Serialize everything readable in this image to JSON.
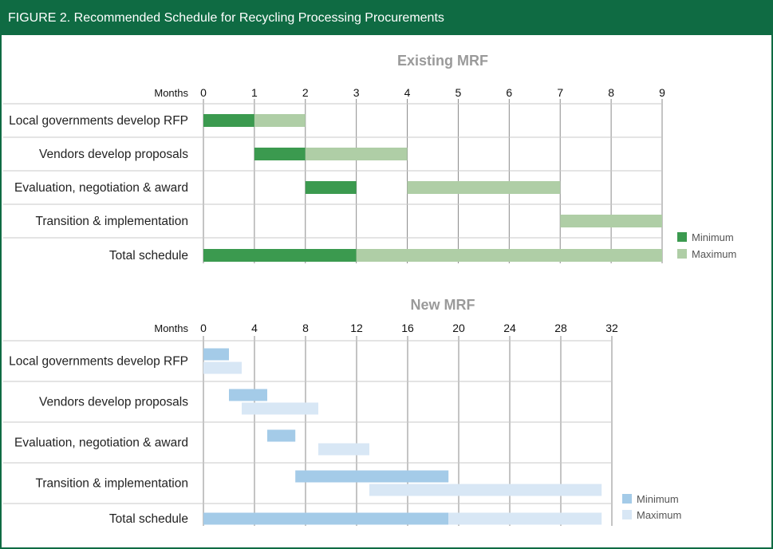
{
  "figure": {
    "header": "FIGURE 2. Recommended Schedule for Recycling Processing Procurements"
  },
  "chart_data": [
    {
      "type": "bar",
      "subtype": "gantt",
      "title": "Existing MRF",
      "xlabel": "Months",
      "xlim": [
        0,
        9
      ],
      "xticks": [
        0,
        1,
        2,
        3,
        4,
        5,
        6,
        7,
        8,
        9
      ],
      "grid": true,
      "legend_position": "right",
      "colors": {
        "Minimum": "#3b9a4f",
        "Maximum": "#afcea6"
      },
      "categories": [
        "Local governments develop RFP",
        "Vendors develop proposals",
        "Evaluation, negotiation & award",
        "Transition & implementation",
        "Total schedule"
      ],
      "series": [
        {
          "name": "Minimum",
          "ranges": [
            [
              0,
              1
            ],
            [
              1,
              2
            ],
            [
              2,
              3
            ],
            null,
            [
              0,
              3
            ]
          ]
        },
        {
          "name": "Maximum",
          "ranges": [
            [
              1,
              2
            ],
            [
              2,
              4
            ],
            [
              4,
              7
            ],
            [
              7,
              9
            ],
            [
              3,
              9
            ]
          ]
        }
      ]
    },
    {
      "type": "bar",
      "subtype": "gantt",
      "title": "New MRF",
      "xlabel": "Months",
      "xlim": [
        0,
        32
      ],
      "xticks": [
        0,
        4,
        8,
        12,
        16,
        20,
        24,
        28,
        32
      ],
      "grid": true,
      "legend_position": "right",
      "colors": {
        "Minimum": "#a4cbe8",
        "Maximum": "#d8e7f5"
      },
      "categories": [
        "Local governments develop RFP",
        "Vendors develop proposals",
        "Evaluation, negotiation & award",
        "Transition & implementation",
        "Total schedule"
      ],
      "series": [
        {
          "name": "Minimum",
          "ranges": [
            [
              0,
              2
            ],
            [
              2,
              5
            ],
            [
              5,
              7.2
            ],
            [
              7.2,
              19.2
            ],
            [
              0,
              19.2
            ]
          ]
        },
        {
          "name": "Maximum",
          "ranges": [
            [
              0,
              3
            ],
            [
              3,
              9
            ],
            [
              9,
              13
            ],
            [
              13,
              31.2
            ],
            [
              19.2,
              31.2
            ]
          ]
        }
      ]
    }
  ]
}
